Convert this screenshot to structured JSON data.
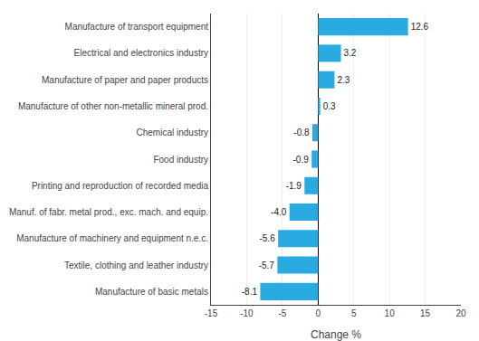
{
  "chart_data": {
    "type": "bar",
    "orientation": "horizontal",
    "categories": [
      "Manufacture of basic metals",
      "Textile, clothing and leather industry",
      "Manufacture of machinery and equipment n.e.c.",
      "Manuf. of fabr. metal prod., exc. mach. and equip.",
      "Printing and reproduction of recorded media",
      "Food industry",
      "Chemical industry",
      "Manufacture of other non-metallic mineral prod.",
      "Manufacture of paper and paper products",
      "Electrical and electronics industry",
      "Manufacture of transport equipment"
    ],
    "values": [
      -8.1,
      -5.7,
      -5.6,
      -4.0,
      -1.9,
      -0.9,
      -0.8,
      0.3,
      2.3,
      3.2,
      12.6
    ],
    "value_labels": [
      "-8.1",
      "-5.7",
      "-5.6",
      "-4.0",
      "-1.9",
      "-0.9",
      "-0.8",
      "0.3",
      "2.3",
      "3.2",
      "12.6"
    ],
    "data_labels": true,
    "color": "#29abe2",
    "xlabel": "Change %",
    "xlim": [
      -15,
      20
    ],
    "xticks": [
      -15,
      -10,
      -5,
      0,
      5,
      10,
      15,
      20
    ],
    "grid": true
  }
}
